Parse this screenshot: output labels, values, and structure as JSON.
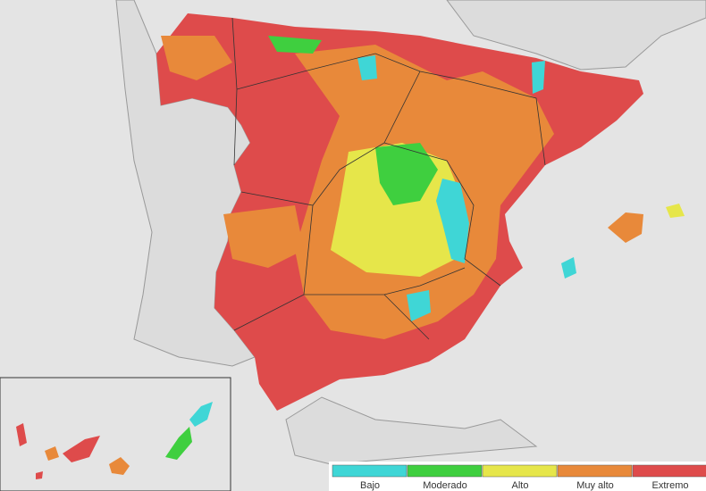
{
  "legend": {
    "items": [
      {
        "label": "Bajo",
        "color": "#3fd6d6"
      },
      {
        "label": "Moderado",
        "color": "#3fcf3f"
      },
      {
        "label": "Alto",
        "color": "#e6e64a"
      },
      {
        "label": "Muy alto",
        "color": "#e8893a"
      },
      {
        "label": "Extremo",
        "color": "#de4b4b"
      }
    ]
  }
}
